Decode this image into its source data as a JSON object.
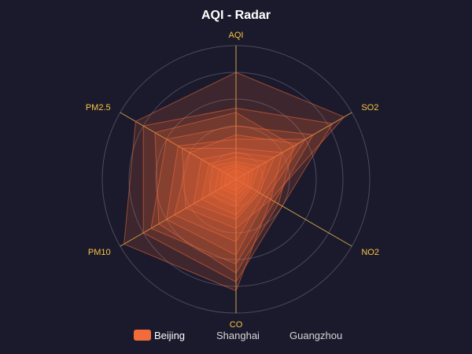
{
  "chart_data": {
    "type": "radar",
    "title": "AQI - Radar",
    "indicators": [
      {
        "name": "AQI",
        "max": 300
      },
      {
        "name": "SO2",
        "max": 300
      },
      {
        "name": "NO2",
        "max": 300
      },
      {
        "name": "CO",
        "max": 300
      },
      {
        "name": "PM10",
        "max": 300
      },
      {
        "name": "PM2.5",
        "max": 300
      }
    ],
    "series": [
      {
        "name": "Beijing",
        "color": "#f26b3a",
        "visible": true,
        "values": [
          [
            240,
            280,
            90,
            250,
            290,
            260
          ],
          [
            160,
            250,
            120,
            230,
            240,
            240
          ],
          [
            120,
            200,
            100,
            190,
            220,
            180
          ],
          [
            150,
            150,
            110,
            210,
            200,
            210
          ],
          [
            90,
            180,
            80,
            170,
            180,
            150
          ],
          [
            100,
            160,
            70,
            140,
            160,
            120
          ],
          [
            70,
            120,
            90,
            110,
            130,
            140
          ],
          [
            60,
            100,
            60,
            90,
            110,
            90
          ],
          [
            50,
            80,
            55,
            80,
            90,
            70
          ],
          [
            40,
            60,
            40,
            60,
            70,
            60
          ],
          [
            35,
            45,
            35,
            50,
            55,
            45
          ],
          [
            30,
            35,
            30,
            35,
            40,
            35
          ],
          [
            20,
            25,
            20,
            25,
            30,
            25
          ]
        ]
      },
      {
        "name": "Shanghai",
        "color": "#ffffff",
        "visible": false,
        "values": []
      },
      {
        "name": "Guangzhou",
        "color": "#ffffff",
        "visible": false,
        "values": []
      }
    ],
    "split_rings": 5,
    "legend_position": "bottom"
  },
  "colors": {
    "background": "#1b1a2c",
    "axis_line": "#c9a24a",
    "ring": "#4b4a5c",
    "label": "#f5c542",
    "series_fill": "#f26b3a"
  }
}
